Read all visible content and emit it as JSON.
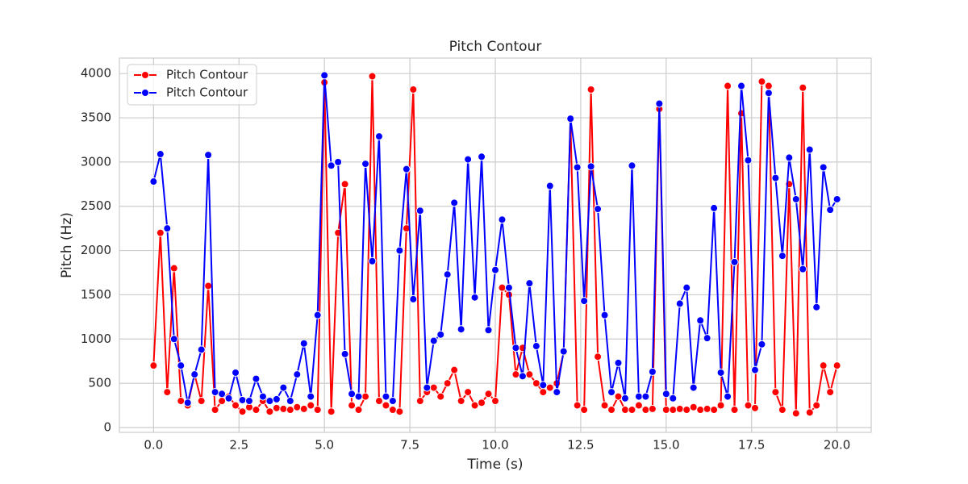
{
  "chart_data": {
    "type": "line",
    "title": "Pitch Contour",
    "x_label": "Time (s)",
    "y_label": "Pitch (Hz)",
    "x": [
      0,
      0.2,
      0.4,
      0.6,
      0.8,
      1,
      1.2,
      1.4,
      1.6,
      1.8,
      2,
      2.2,
      2.4,
      2.6,
      2.8,
      3,
      3.2,
      3.4,
      3.6,
      3.8,
      4,
      4.2,
      4.4,
      4.6,
      4.8,
      5,
      5.2,
      5.4,
      5.6,
      5.8,
      6,
      6.2,
      6.4,
      6.6,
      6.8,
      7,
      7.2,
      7.4,
      7.6,
      7.8,
      8,
      8.2,
      8.4,
      8.6,
      8.8,
      9,
      9.2,
      9.4,
      9.6,
      9.8,
      10,
      10.2,
      10.4,
      10.6,
      10.8,
      11,
      11.2,
      11.4,
      11.6,
      11.8,
      12,
      12.2,
      12.4,
      12.6,
      12.8,
      13,
      13.2,
      13.4,
      13.6,
      13.8,
      14,
      14.2,
      14.4,
      14.6,
      14.8,
      15,
      15.2,
      15.4,
      15.6,
      15.8,
      16,
      16.2,
      16.4,
      16.6,
      16.8,
      17,
      17.2,
      17.4,
      17.6,
      17.8,
      18,
      18.2,
      18.4,
      18.6,
      18.8,
      19,
      19.2,
      19.4,
      19.6,
      19.8,
      20
    ],
    "series": [
      {
        "name": "Pitch Contour",
        "color": "#ff0000",
        "values": [
          700,
          2200,
          400,
          1800,
          300,
          250,
          600,
          300,
          1600,
          200,
          300,
          350,
          250,
          180,
          230,
          200,
          300,
          180,
          220,
          210,
          200,
          230,
          210,
          250,
          200,
          3900,
          180,
          2200,
          2750,
          250,
          200,
          350,
          3970,
          300,
          250,
          200,
          180,
          2250,
          3820,
          300,
          400,
          450,
          350,
          500,
          650,
          300,
          400,
          250,
          280,
          380,
          300,
          1580,
          1500,
          600,
          900,
          600,
          500,
          400,
          450,
          500,
          850,
          3480,
          250,
          200,
          3820,
          800,
          250,
          200,
          350,
          200,
          200,
          250,
          200,
          210,
          3600,
          200,
          200,
          210,
          200,
          230,
          200,
          210,
          200,
          250,
          3860,
          200,
          3550,
          250,
          220,
          3910,
          3860,
          400,
          200,
          2750,
          160,
          3840,
          170,
          250,
          700,
          400,
          700
        ]
      },
      {
        "name": "Pitch Contour",
        "color": "#0000ff",
        "values": [
          2780,
          3090,
          2250,
          1000,
          700,
          280,
          600,
          880,
          3080,
          400,
          380,
          330,
          620,
          310,
          300,
          550,
          350,
          300,
          320,
          450,
          300,
          600,
          950,
          350,
          1270,
          3980,
          2960,
          3000,
          830,
          380,
          350,
          2980,
          1880,
          3290,
          350,
          300,
          2000,
          2920,
          1450,
          2450,
          450,
          980,
          1050,
          1730,
          2540,
          1110,
          3030,
          1470,
          3060,
          1100,
          1780,
          2350,
          1580,
          900,
          580,
          1630,
          920,
          480,
          2730,
          400,
          860,
          3490,
          2940,
          1430,
          2950,
          2470,
          1270,
          400,
          730,
          330,
          2960,
          350,
          350,
          630,
          3660,
          380,
          330,
          1400,
          1580,
          450,
          1210,
          1010,
          2480,
          620,
          350,
          1870,
          3860,
          3020,
          650,
          940,
          3780,
          2820,
          1940,
          3050,
          2580,
          1790,
          3140,
          1360,
          2940,
          2460,
          2580
        ]
      }
    ],
    "xlim": [
      -1.0,
      21.0
    ],
    "ylim": [
      -55,
      4175
    ],
    "xticks": [
      {
        "value": 0,
        "label": "0.0"
      },
      2.5,
      {
        "value": 5,
        "label": "5.0"
      },
      7.5,
      {
        "value": 10,
        "label": "10.0"
      },
      12.5,
      {
        "value": 15,
        "label": "15.0"
      },
      17.5,
      {
        "value": 20,
        "label": "20.0"
      }
    ],
    "yticks": [
      0,
      500,
      1000,
      1500,
      2000,
      2500,
      3000,
      3500,
      4000
    ],
    "grid": true,
    "legend": "upper left"
  }
}
